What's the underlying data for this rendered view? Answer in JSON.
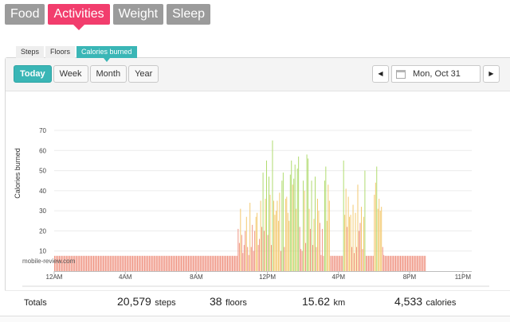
{
  "nav": {
    "tabs": [
      {
        "label": "Food",
        "active": false
      },
      {
        "label": "Activities",
        "active": true
      },
      {
        "label": "Weight",
        "active": false
      },
      {
        "label": "Sleep",
        "active": false
      }
    ]
  },
  "range": {
    "buttons": [
      "Today",
      "Week",
      "Month",
      "Year"
    ],
    "active": "Today"
  },
  "date_nav": {
    "prev_icon": "triangle-left-icon",
    "next_icon": "triangle-right-icon",
    "calendar_icon": "calendar-icon",
    "date": "Mon, Oct 31"
  },
  "metric_tabs": [
    "Steps",
    "Floors",
    "Calories burned"
  ],
  "active_metric": "Calories burned",
  "watermark": "mobile-review.com",
  "colors": {
    "accent_pink": "#f23d6d",
    "accent_teal": "#3ab6b6",
    "bar_low": "#ee8b78",
    "bar_mid": "#f2c462",
    "bar_high": "#a8d860"
  },
  "chart_data": {
    "type": "bar",
    "ylabel": "Calories burned",
    "ylim": [
      0,
      70
    ],
    "yticks": [
      "10",
      "20",
      "30",
      "40",
      "50",
      "60",
      "70"
    ],
    "xticks": [
      "12AM",
      "4AM",
      "8AM",
      "12PM",
      "4PM",
      "8PM",
      "11PM"
    ],
    "xtick_positions": [
      0,
      4,
      8,
      12,
      16,
      20,
      23
    ],
    "x_unit": "hour",
    "bin_minutes": 4,
    "values": [
      7.6,
      7.6,
      7.6,
      7.6,
      7.6,
      7.6,
      7.6,
      7.6,
      7.6,
      7.6,
      7.6,
      7.6,
      7.6,
      7.6,
      7.6,
      7.6,
      7.6,
      7.6,
      7.6,
      7.6,
      7.6,
      7.6,
      7.6,
      7.6,
      7.6,
      7.6,
      7.6,
      7.6,
      7.6,
      7.6,
      7.6,
      7.6,
      7.6,
      7.6,
      7.6,
      7.6,
      7.6,
      7.6,
      7.6,
      7.6,
      7.6,
      7.6,
      7.6,
      7.6,
      7.6,
      7.6,
      7.6,
      7.6,
      7.6,
      7.6,
      7.6,
      7.6,
      7.6,
      7.6,
      7.6,
      7.6,
      7.6,
      7.6,
      7.6,
      7.6,
      7.6,
      7.6,
      7.6,
      7.6,
      7.6,
      7.6,
      7.6,
      7.6,
      7.6,
      7.6,
      7.6,
      7.6,
      7.6,
      7.6,
      7.6,
      7.6,
      7.6,
      7.6,
      7.6,
      7.6,
      7.6,
      7.6,
      7.6,
      7.6,
      7.6,
      7.6,
      7.6,
      7.6,
      7.6,
      7.6,
      7.6,
      7.6,
      7.6,
      7.6,
      7.6,
      7.6,
      7.6,
      7.6,
      7.6,
      7.6,
      7.6,
      7.6,
      7.6,
      7.6,
      7.6,
      7.6,
      7.6,
      7.6,
      7.6,
      7.6,
      7.6,
      7.6,
      7.6,
      7.6,
      7.6,
      7.6,
      7.6,
      7.6,
      7.6,
      7.6,
      7.6,
      7.6,
      7.6,
      7.6,
      7.6,
      7.6,
      7.6,
      7.6,
      7.6,
      7.6,
      7.6,
      7.6,
      7.6,
      7.6,
      7.6,
      7.6,
      7.6,
      7.6,
      7.6,
      7.6,
      7.6,
      7.6,
      7.6,
      7.6,
      7.6,
      7.6,
      7.6,
      7.6,
      7.6,
      7.6,
      7.6,
      7.6,
      7.6,
      7.6,
      7.6,
      21,
      14,
      31,
      18,
      9,
      13,
      20,
      27,
      12,
      8,
      34,
      12,
      23,
      10,
      20,
      27,
      29,
      13,
      16,
      35,
      22,
      49,
      20,
      36,
      55,
      18,
      47,
      38,
      13,
      65,
      35,
      28,
      30,
      35,
      25,
      39,
      10,
      45,
      49,
      12,
      36,
      37,
      29,
      25,
      48,
      55,
      43,
      46,
      53,
      31,
      51,
      57,
      22,
      11,
      10,
      45,
      40,
      14,
      58,
      56,
      31,
      21,
      45,
      13,
      26,
      47,
      12,
      36,
      30,
      24,
      8,
      21,
      7.6,
      45,
      52,
      25,
      43,
      35,
      7.6,
      7.6,
      7.6,
      7.6,
      7.6,
      7.6,
      7.6,
      7.6,
      7.6,
      7.6,
      7.6,
      55,
      28,
      41,
      22,
      37,
      27,
      28,
      12,
      33,
      9,
      29,
      12,
      43,
      20,
      24,
      32,
      11,
      27,
      50,
      7.6,
      7.6,
      7.6,
      7.6,
      7.6,
      7.6,
      7.6,
      38,
      44,
      52,
      31,
      36,
      30,
      32,
      12,
      8,
      7.6,
      7.6,
      7.6,
      7.6,
      7.6,
      7.6,
      7.6,
      7.6,
      7.6,
      7.6,
      7.6,
      7.6,
      7.6,
      7.6,
      7.6,
      7.6,
      7.6,
      7.6,
      7.6,
      7.6,
      7.6,
      7.6,
      7.6,
      7.6,
      7.6,
      7.6,
      7.6,
      7.6,
      7.6,
      7.6,
      7.6,
      7.6,
      7.6,
      7.6,
      7.6
    ]
  },
  "totals": {
    "label": "Totals",
    "steps": {
      "value": "20,579",
      "unit": "steps"
    },
    "floors": {
      "value": "38",
      "unit": "floors"
    },
    "distance": {
      "value": "15.62",
      "unit": "km"
    },
    "calories": {
      "value": "4,533",
      "unit": "calories"
    }
  }
}
